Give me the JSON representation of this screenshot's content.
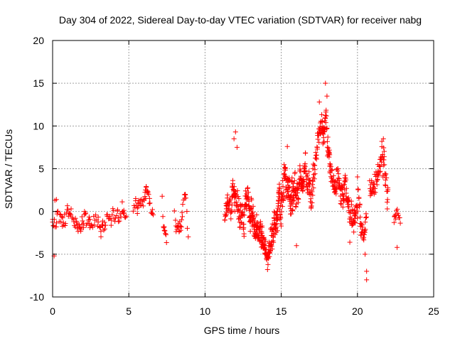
{
  "chart_data": {
    "type": "scatter",
    "title": "Day 304 of 2022, Sidereal Day-to-day VTEC variation (SDTVAR) for receiver nabg",
    "xlabel": "GPS time / hours",
    "ylabel": "SDTVAR / TECUs",
    "xlim": [
      0,
      25
    ],
    "ylim": [
      -10,
      20
    ],
    "xticks": [
      0,
      5,
      10,
      15,
      20,
      25
    ],
    "yticks": [
      -10,
      -5,
      0,
      5,
      10,
      15,
      20
    ],
    "grid": true,
    "marker": "plus",
    "color": "#ff0000",
    "series": [
      {
        "name": "SDTVAR",
        "segments": [
          {
            "start": 0.0,
            "end": 4.9,
            "step": 0.06,
            "trend": [
              [
                0.0,
                -1.8
              ],
              [
                1.0,
                -0.6
              ],
              [
                2.0,
                -0.8
              ],
              [
                3.0,
                -1.2
              ],
              [
                4.0,
                -0.6
              ],
              [
                4.9,
                0.2
              ]
            ],
            "amp": 1.6
          },
          {
            "start": 5.3,
            "end": 6.6,
            "step": 0.05,
            "trend": [
              [
                5.3,
                -0.2
              ],
              [
                5.9,
                1.2
              ],
              [
                6.2,
                2.2
              ],
              [
                6.6,
                -0.5
              ]
            ],
            "amp": 1.4
          },
          {
            "start": 7.2,
            "end": 7.5,
            "step": 0.04,
            "trend": [
              [
                7.2,
                1.5
              ],
              [
                7.3,
                -2.5
              ],
              [
                7.5,
                -4.0
              ]
            ],
            "amp": 1.0
          },
          {
            "start": 8.0,
            "end": 8.9,
            "step": 0.05,
            "trend": [
              [
                8.0,
                -1.0
              ],
              [
                8.4,
                -3.5
              ],
              [
                8.7,
                2.0
              ],
              [
                8.9,
                -3.0
              ]
            ],
            "amp": 1.6
          },
          {
            "start": 11.3,
            "end": 12.9,
            "step": 0.02,
            "trend": [
              [
                11.3,
                -1.0
              ],
              [
                11.8,
                0.5
              ],
              [
                12.0,
                2.0
              ],
              [
                12.4,
                -1.0
              ],
              [
                12.9,
                0.5
              ]
            ],
            "amp": 2.2
          },
          {
            "start": 12.9,
            "end": 14.3,
            "step": 0.015,
            "trend": [
              [
                12.9,
                -0.5
              ],
              [
                13.4,
                -1.5
              ],
              [
                13.8,
                -3.5
              ],
              [
                14.1,
                -5.5
              ],
              [
                14.3,
                -4.0
              ]
            ],
            "amp": 1.8
          },
          {
            "start": 14.3,
            "end": 16.5,
            "step": 0.015,
            "trend": [
              [
                14.3,
                -3.5
              ],
              [
                14.8,
                -0.5
              ],
              [
                15.2,
                3.0
              ],
              [
                15.6,
                3.0
              ],
              [
                16.0,
                2.0
              ],
              [
                16.5,
                4.0
              ]
            ],
            "amp": 2.6
          },
          {
            "start": 16.5,
            "end": 18.2,
            "step": 0.02,
            "trend": [
              [
                16.5,
                4.0
              ],
              [
                17.0,
                3.0
              ],
              [
                17.4,
                8.0
              ],
              [
                17.8,
                11.0
              ],
              [
                18.2,
                5.5
              ]
            ],
            "amp": 2.4
          },
          {
            "start": 18.2,
            "end": 20.0,
            "step": 0.02,
            "trend": [
              [
                18.2,
                4.5
              ],
              [
                18.8,
                2.5
              ],
              [
                19.2,
                3.0
              ],
              [
                19.6,
                0.5
              ],
              [
                20.0,
                -1.0
              ]
            ],
            "amp": 2.2
          },
          {
            "start": 20.0,
            "end": 20.6,
            "step": 0.03,
            "trend": [
              [
                20.0,
                3.0
              ],
              [
                20.3,
                -2.0
              ],
              [
                20.6,
                -1.0
              ]
            ],
            "amp": 2.0
          },
          {
            "start": 20.8,
            "end": 22.0,
            "step": 0.025,
            "trend": [
              [
                20.8,
                4.0
              ],
              [
                21.3,
                5.0
              ],
              [
                21.7,
                5.5
              ],
              [
                22.0,
                2.0
              ]
            ],
            "amp": 2.4
          },
          {
            "start": 22.4,
            "end": 22.8,
            "step": 0.04,
            "trend": [
              [
                22.4,
                -1.5
              ],
              [
                22.6,
                -0.5
              ],
              [
                22.8,
                -1.5
              ]
            ],
            "amp": 1.2
          }
        ],
        "outliers": [
          {
            "x": 0.1,
            "y": -5.2
          },
          {
            "x": 0.15,
            "y": 1.3
          },
          {
            "x": 0.25,
            "y": 1.4
          },
          {
            "x": 11.9,
            "y": 8.5
          },
          {
            "x": 12.0,
            "y": 9.3
          },
          {
            "x": 12.1,
            "y": 7.5
          },
          {
            "x": 14.1,
            "y": -6.8
          },
          {
            "x": 15.4,
            "y": 7.6
          },
          {
            "x": 16.0,
            "y": -4.0
          },
          {
            "x": 17.5,
            "y": 12.8
          },
          {
            "x": 17.8,
            "y": 9.3
          },
          {
            "x": 17.9,
            "y": 15.0
          },
          {
            "x": 18.0,
            "y": 13.5
          },
          {
            "x": 19.5,
            "y": -3.6
          },
          {
            "x": 20.6,
            "y": -7.0
          },
          {
            "x": 20.6,
            "y": -8.0
          },
          {
            "x": 20.5,
            "y": -5.0
          },
          {
            "x": 21.6,
            "y": 8.2
          },
          {
            "x": 21.7,
            "y": 8.5
          },
          {
            "x": 22.6,
            "y": -4.2
          }
        ]
      }
    ]
  }
}
